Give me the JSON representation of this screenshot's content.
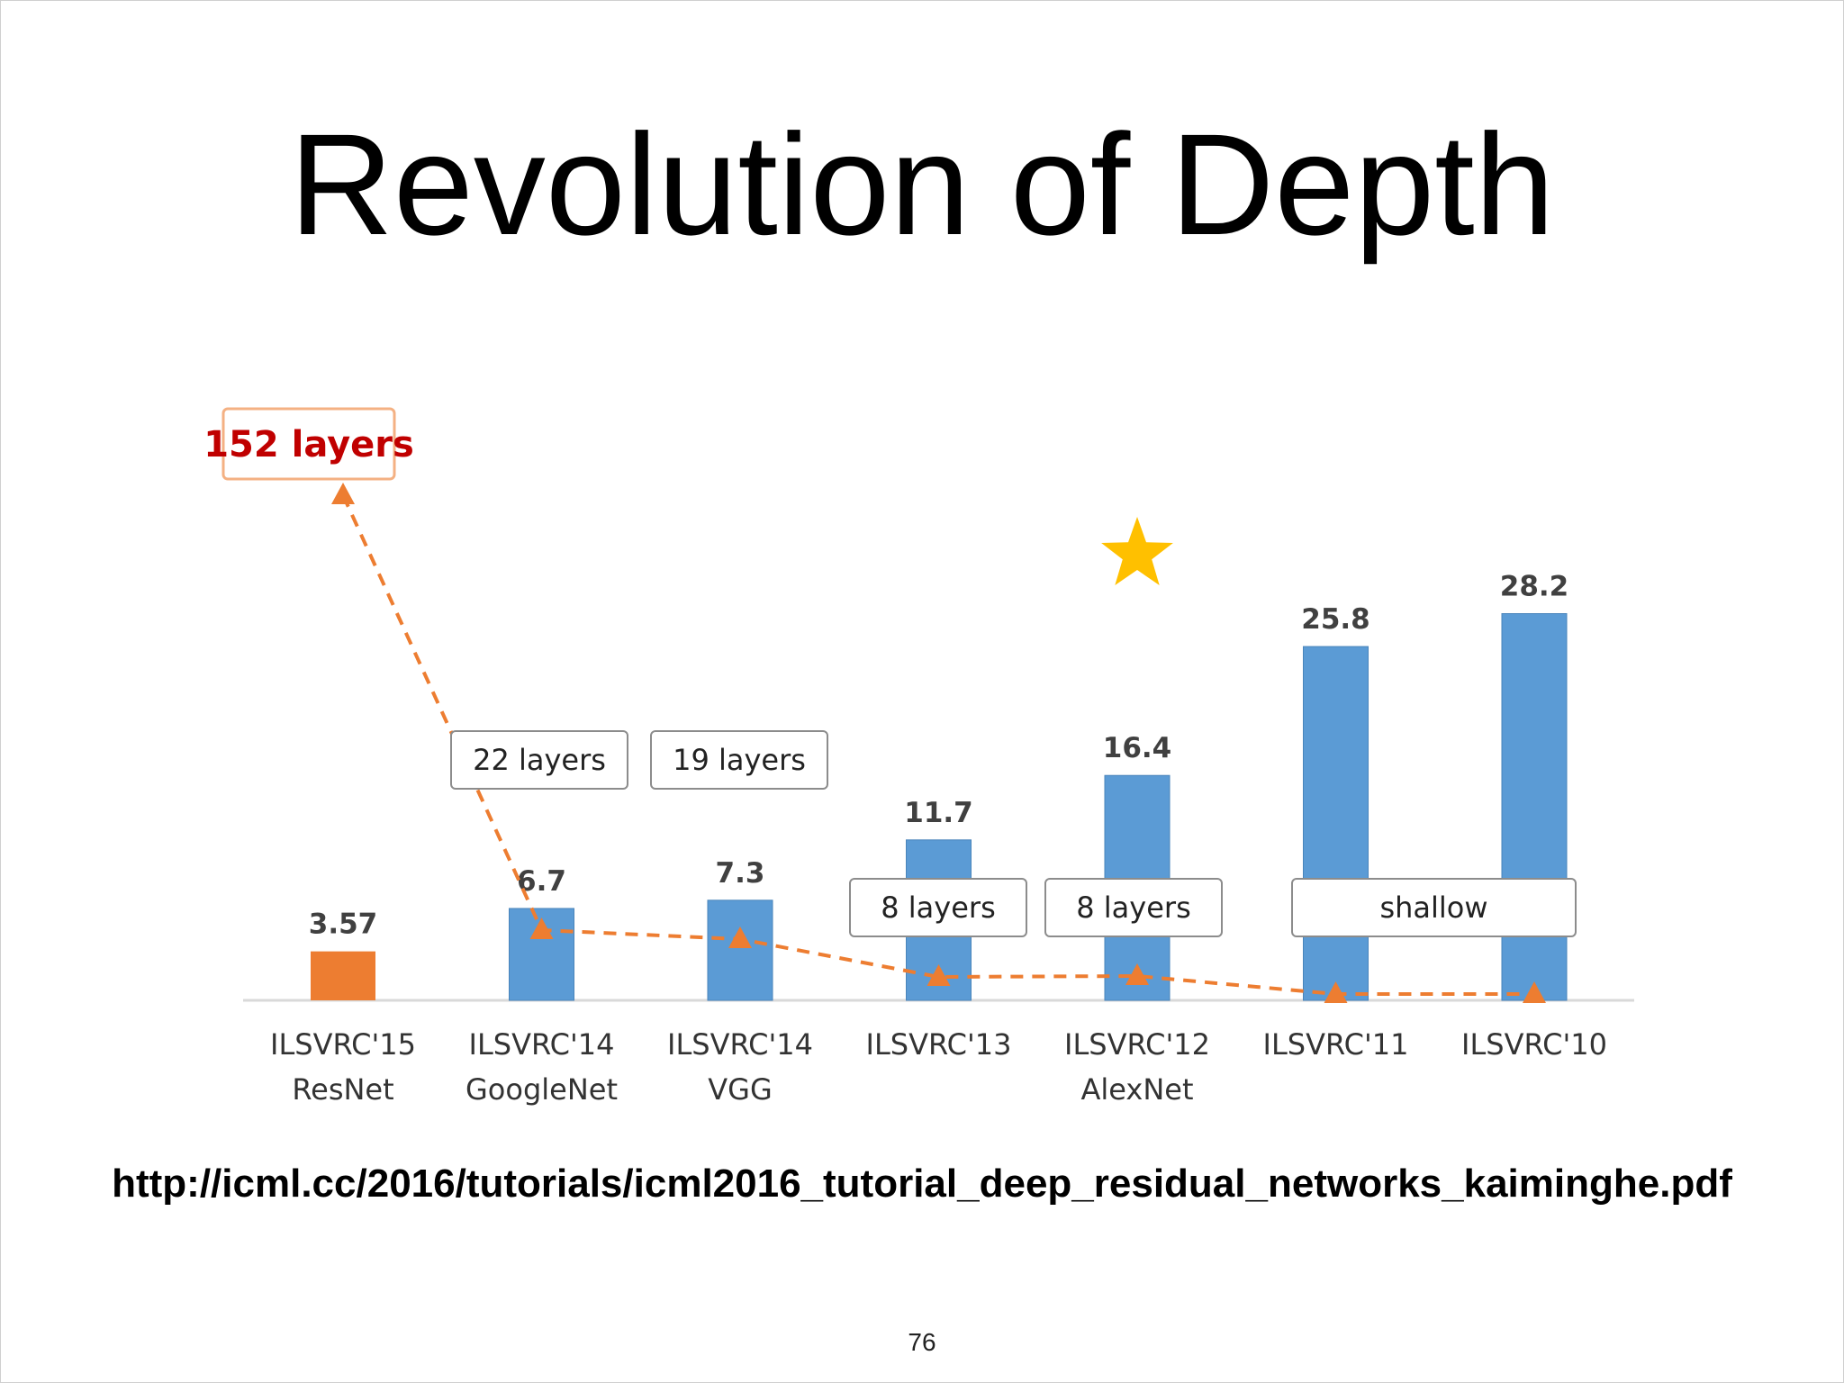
{
  "slide": {
    "title": "Revolution of Depth",
    "source": "http://icml.cc/2016/tutorials/icml2016_tutorial_deep_residual_networks_kaiminghe.pdf",
    "page_number": "76"
  },
  "colors": {
    "highlight_bar": "#ED7D31",
    "bar": "#5B9BD5",
    "trend_line": "#ED7D31",
    "star": "#FFC000",
    "resnet_label_text": "#C00000",
    "resnet_label_border": "#F4B183",
    "box_border": "#8C8C8C",
    "value_label": "#404040",
    "axis": "#D9D9D9"
  },
  "chart_data": {
    "type": "bar",
    "categories": [
      [
        "ILSVRC'15",
        "ResNet"
      ],
      [
        "ILSVRC'14",
        "GoogleNet"
      ],
      [
        "ILSVRC'14",
        "VGG"
      ],
      [
        "ILSVRC'13"
      ],
      [
        "ILSVRC'12",
        "AlexNet"
      ],
      [
        "ILSVRC'11"
      ],
      [
        "ILSVRC'10"
      ]
    ],
    "values": [
      3.57,
      6.7,
      7.3,
      11.7,
      16.4,
      25.8,
      28.2
    ],
    "value_labels": [
      "3.57",
      "6.7",
      "7.3",
      "11.7",
      "16.4",
      "25.8",
      "28.2"
    ],
    "highlight_index": 0,
    "ylim": [
      0,
      28.2
    ],
    "grid": false,
    "depth_annotations": [
      {
        "text": "152 layers",
        "categories": [
          0
        ],
        "emphasis": true
      },
      {
        "text": "22 layers",
        "categories": [
          1
        ]
      },
      {
        "text": "19 layers",
        "categories": [
          2
        ]
      },
      {
        "text": "8 layers",
        "categories": [
          3
        ]
      },
      {
        "text": "8 layers",
        "categories": [
          4
        ]
      },
      {
        "text": "shallow",
        "categories": [
          5,
          6
        ]
      }
    ],
    "star_category": 4
  }
}
